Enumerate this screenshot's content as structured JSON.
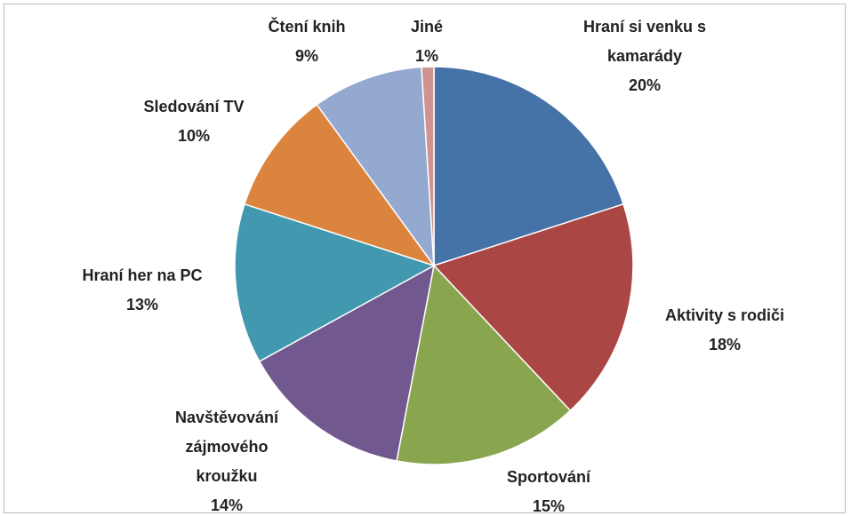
{
  "chart_data": {
    "type": "pie",
    "categories": [
      "Hraní si venku s kamarády",
      "Aktivity s rodiči",
      "Sportování",
      "Navštěvování zájmového kroužku",
      "Hraní her na PC",
      "Sledování TV",
      "Čtení knih",
      "Jiné"
    ],
    "values": [
      20,
      18,
      15,
      14,
      13,
      10,
      9,
      1
    ],
    "value_labels": [
      "20%",
      "18%",
      "15%",
      "14%",
      "13%",
      "10%",
      "9%",
      "1%"
    ],
    "colors": [
      "#4572a7",
      "#aa4643",
      "#89a54e",
      "#71588f",
      "#4198af",
      "#db843d",
      "#93a9cf",
      "#d19392"
    ]
  }
}
